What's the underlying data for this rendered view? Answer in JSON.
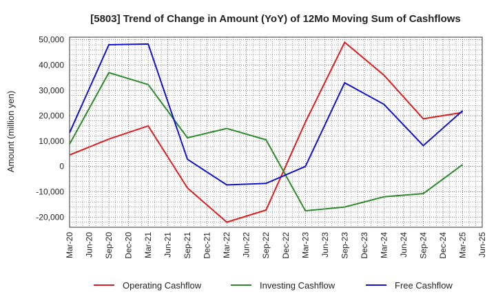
{
  "chart_data": {
    "type": "line",
    "title": "[5803]  Trend of Change in Amount (YoY) of 12Mo Moving Sum of Cashflows",
    "ylabel": "Amount (million yen)",
    "xlabel": "",
    "ylim": [
      -24000,
      51000
    ],
    "yticks": [
      -20000,
      -10000,
      0,
      10000,
      20000,
      30000,
      40000,
      50000
    ],
    "ytick_labels": [
      "-20,000",
      "-10,000",
      "0",
      "10,000",
      "20,000",
      "30,000",
      "40,000",
      "50,000"
    ],
    "categories": [
      "Mar-20",
      "Jun-20",
      "Sep-20",
      "Dec-20",
      "Mar-21",
      "Jun-21",
      "Sep-21",
      "Dec-21",
      "Mar-22",
      "Jun-22",
      "Sep-22",
      "Dec-22",
      "Mar-23",
      "Jun-23",
      "Sep-23",
      "Dec-23",
      "Mar-24",
      "Jun-24",
      "Sep-24",
      "Dec-24",
      "Mar-25",
      "Jun-25"
    ],
    "grid": true,
    "legend_position": "bottom",
    "series": [
      {
        "name": "Operating Cashflow",
        "color": "#e31a1c",
        "values": [
          4500,
          null,
          10800,
          null,
          16000,
          null,
          -8500,
          null,
          -22000,
          null,
          -17200,
          null,
          17500,
          null,
          49000,
          null,
          36000,
          null,
          18800,
          null,
          21300,
          null
        ]
      },
      {
        "name": "Investing Cashflow",
        "color": "#2a8a2a",
        "values": [
          8800,
          null,
          37000,
          null,
          32300,
          null,
          11300,
          null,
          15000,
          null,
          10500,
          null,
          -17500,
          null,
          -16000,
          null,
          -12000,
          null,
          -10700,
          null,
          700,
          null
        ]
      },
      {
        "name": "Free Cashflow",
        "color": "#1010d0",
        "values": [
          13300,
          null,
          48000,
          null,
          48300,
          null,
          2800,
          null,
          -7300,
          null,
          -6700,
          null,
          0,
          null,
          33000,
          null,
          24500,
          null,
          8200,
          null,
          22000,
          null
        ]
      }
    ]
  }
}
